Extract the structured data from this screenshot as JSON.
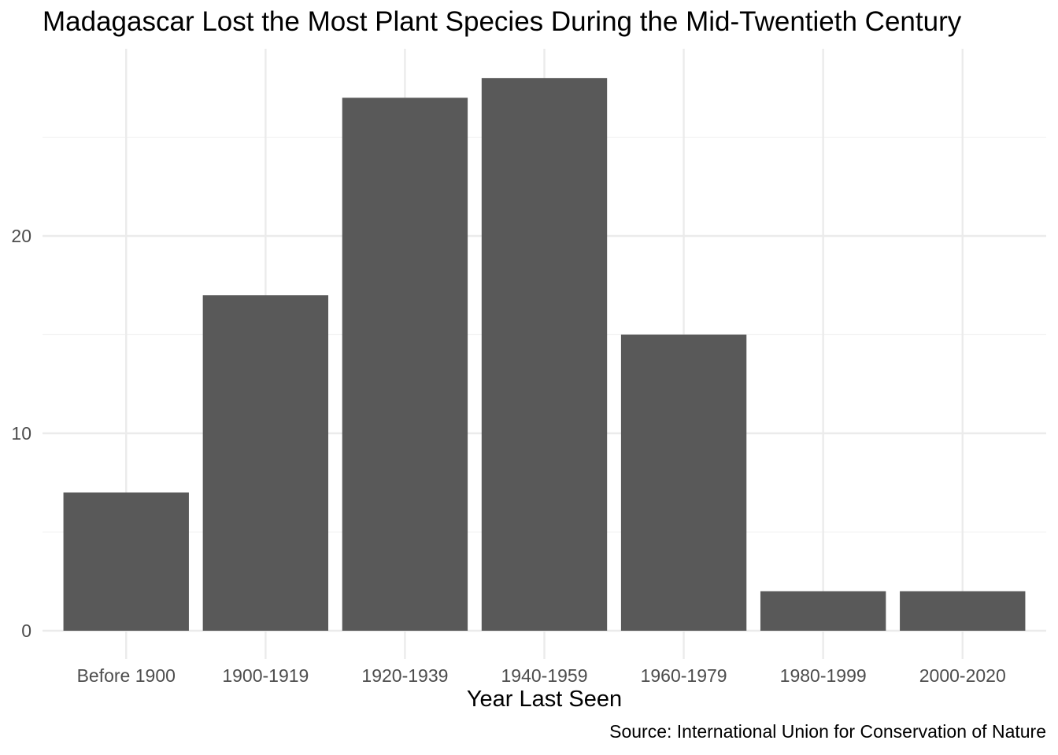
{
  "chart_data": {
    "type": "bar",
    "title": "Madagascar Lost the Most Plant Species During the Mid-Twentieth Century",
    "xlabel": "Year Last Seen",
    "ylabel": "",
    "caption": "Source: International Union for Conservation of Nature",
    "categories": [
      "Before 1900",
      "1900-1919",
      "1920-1939",
      "1940-1959",
      "1960-1979",
      "1980-1999",
      "2000-2020"
    ],
    "values": [
      7,
      17,
      27,
      28,
      15,
      2,
      2
    ],
    "y_ticks": [
      0,
      10,
      20
    ],
    "ylim": [
      0,
      29.5
    ],
    "grid": true,
    "legend": "none",
    "colors": {
      "bar": "#595959",
      "grid_major": "#ebebeb",
      "grid_minor": "#f2f2f2",
      "tick_label": "#4d4d4d",
      "text": "#000000",
      "background": "#ffffff"
    }
  }
}
